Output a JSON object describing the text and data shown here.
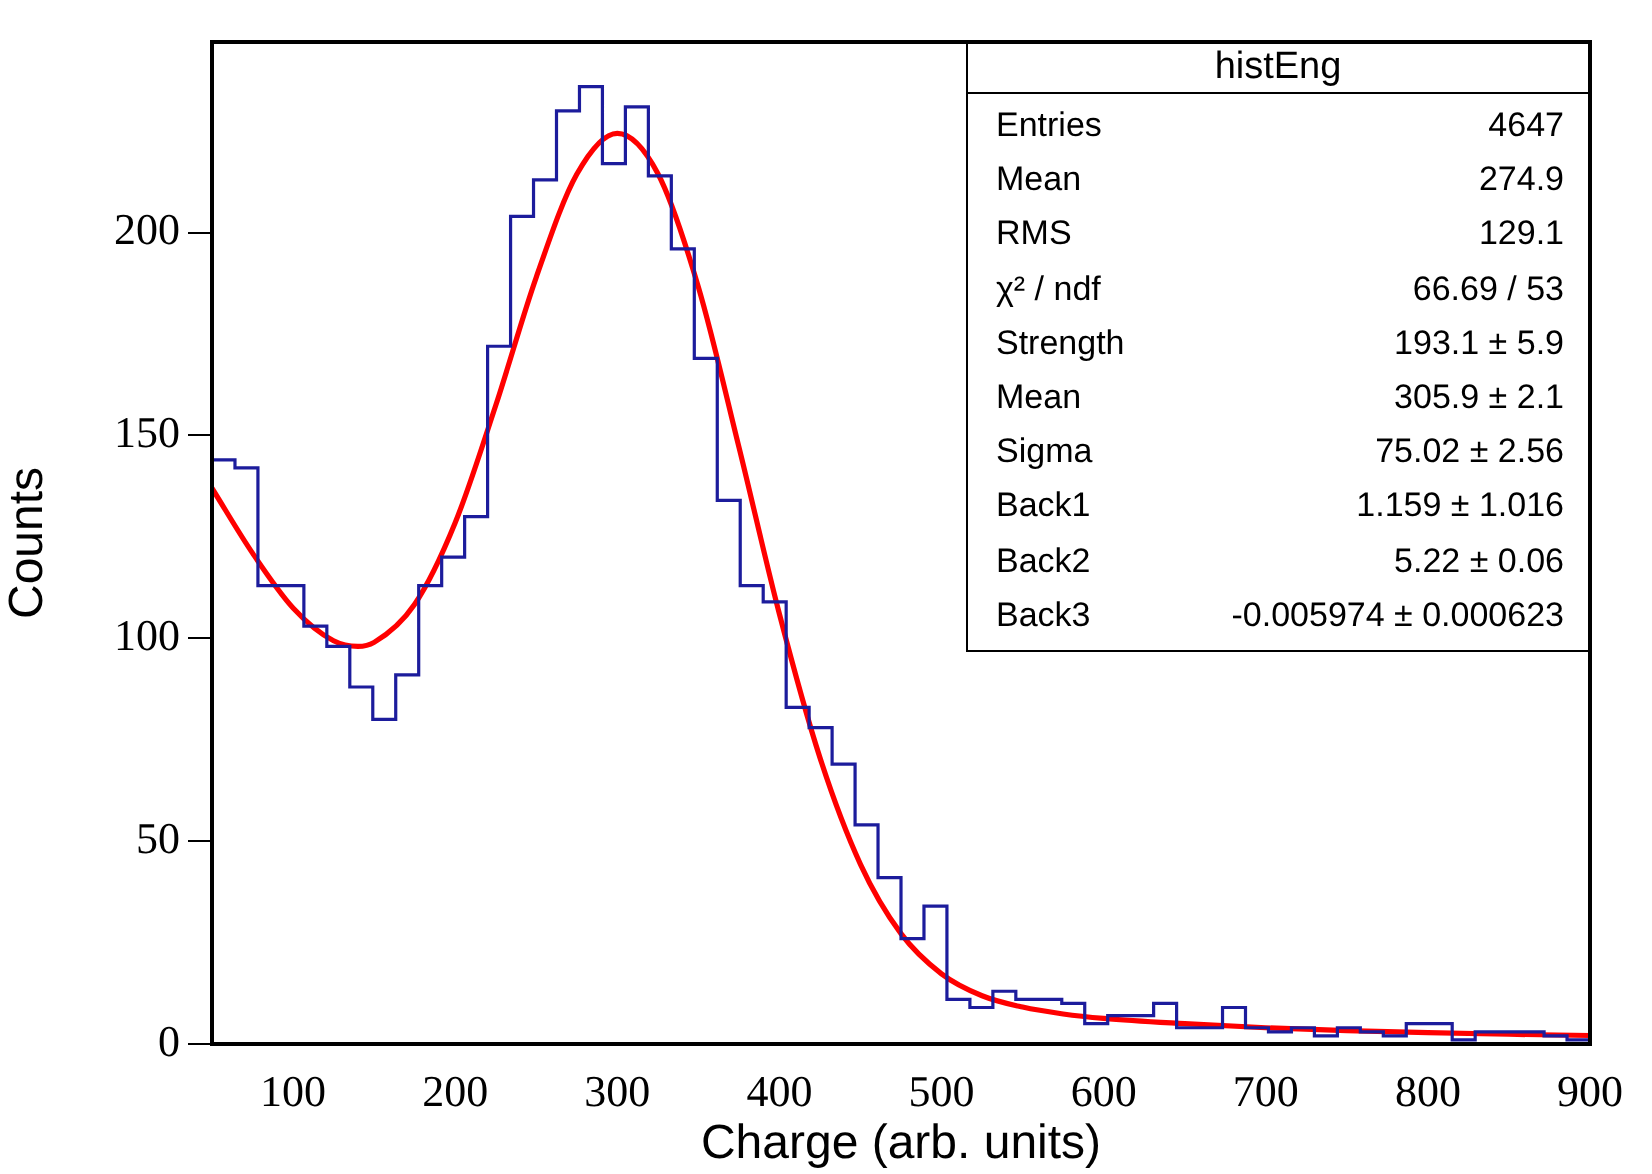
{
  "chart_data": {
    "type": "histogram",
    "xlabel": "Charge (arb. units)",
    "ylabel": "Counts",
    "bins": [
      50,
      64.17,
      78.33,
      92.5,
      106.67,
      120.83,
      135,
      149.17,
      163.33,
      177.5,
      191.67,
      205.83,
      220,
      234.17,
      248.33,
      262.5,
      276.67,
      290.83,
      305,
      319.17,
      333.33,
      347.5,
      361.67,
      375.83,
      390,
      404.17,
      418.33,
      432.5,
      446.67,
      460.83,
      475,
      489.17,
      503.33,
      517.5,
      531.67,
      545.83,
      560,
      574.17,
      588.33,
      602.5,
      616.67,
      630.83,
      645,
      659.17,
      673.33,
      687.5,
      701.67,
      715.83,
      730,
      744.17,
      758.33,
      772.5,
      786.67,
      800.83,
      815,
      829.17,
      843.33,
      857.5,
      871.67,
      885.83,
      900
    ],
    "series": [
      {
        "color": "#1c1c9c",
        "values": [
          144,
          142,
          113,
          113,
          103,
          98,
          88,
          80,
          91,
          113,
          120,
          130,
          172,
          204,
          213,
          230,
          236,
          217,
          231,
          214,
          196,
          169,
          134,
          113,
          109,
          83,
          78,
          69,
          54,
          41,
          26,
          34,
          11,
          9,
          13,
          11,
          11,
          10,
          5,
          7,
          7,
          10,
          4,
          4,
          9,
          4,
          3,
          4,
          2,
          4,
          3,
          2,
          5,
          5,
          1,
          3,
          3,
          3,
          2,
          1
        ]
      },
      {
        "type": "line",
        "color": "#ff0000",
        "x": [
          50,
          75,
          100,
          125,
          140,
          150,
          175,
          200,
          225,
          250,
          275,
          300,
          325,
          350,
          375,
          400,
          425,
          450,
          475,
          500,
          525,
          550,
          575,
          600,
          650,
          700,
          750,
          800,
          850,
          900
        ],
        "values": [
          137,
          121,
          107.5,
          99.4,
          98,
          99,
          108.4,
          128.5,
          157.4,
          189,
          214.4,
          224.5,
          214.6,
          186.6,
          147.2,
          106,
          70.6,
          44.3,
          27.2,
          17.3,
          11.9,
          9.1,
          7.4,
          6.3,
          5,
          4,
          3.3,
          2.8,
          2.4,
          2.1
        ]
      }
    ],
    "xlim": [
      50,
      900
    ],
    "xticks": [
      100,
      200,
      300,
      400,
      500,
      600,
      700,
      800,
      900
    ],
    "ylim": [
      0,
      247
    ],
    "yticks": [
      0,
      50,
      100,
      150,
      200
    ],
    "grid": false,
    "legend": false,
    "annotations": [
      "histEng",
      "Entries",
      "4647",
      "Mean",
      "274.9",
      "RMS",
      "129.1",
      "χ² / ndf",
      "66.69 / 53",
      "Strength",
      "193.1 ± 5.9",
      "Mean",
      "305.9 ± 2.1",
      "Sigma",
      "75.02 ± 2.56",
      "Back1",
      "1.159 ± 1.016",
      "Back2",
      "5.22 ± 0.06",
      "Back3",
      "-0.005974 ± 0.000623"
    ]
  }
}
